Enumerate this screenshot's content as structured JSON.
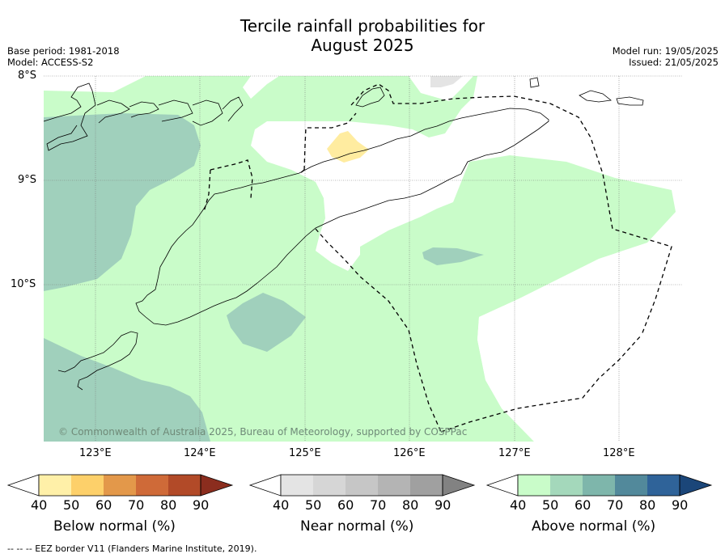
{
  "title_line1": "Tercile rainfall probabilities for",
  "title_line2": "August 2025",
  "meta_left": [
    "Base period: 1981-2018",
    "Model: ACCESS-S2"
  ],
  "meta_right": [
    "Model run: 19/05/2025",
    "Issued: 21/05/2025"
  ],
  "lat_labels": [
    "8°S",
    "9°S",
    "10°S"
  ],
  "lon_labels": [
    "123°E",
    "124°E",
    "125°E",
    "126°E",
    "127°E",
    "128°E"
  ],
  "copyright": "© Commonwealth of Australia 2025, Bureau of Meteorology, supported by COSPPac",
  "colorbars": [
    {
      "label": "Below normal (%)",
      "ticks": [
        "40",
        "50",
        "60",
        "70",
        "80",
        "90"
      ],
      "colors": [
        "#fff0a8",
        "#fdd06a",
        "#e3984a",
        "#cf6a38",
        "#b24a28",
        "#8b2d1e"
      ]
    },
    {
      "label": "Near normal (%)",
      "ticks": [
        "40",
        "50",
        "60",
        "70",
        "80",
        "90"
      ],
      "colors": [
        "#e4e4e4",
        "#d6d6d6",
        "#c6c6c6",
        "#b4b4b4",
        "#a0a0a0",
        "#828282"
      ]
    },
    {
      "label": "Above normal (%)",
      "ticks": [
        "40",
        "50",
        "60",
        "70",
        "80",
        "90"
      ],
      "colors": [
        "#c9fcc9",
        "#a4d8bb",
        "#7eb6ab",
        "#52899b",
        "#2f6399",
        "#1b4679"
      ]
    }
  ],
  "footnote": "-- -- -- EEZ border V11 (Flanders Marine Institute, 2019).",
  "map_colors": {
    "above_40": "#c9fcc9",
    "above_50": "#a0d0bc",
    "below_40": "#ffeca0",
    "near_40": "#e4e4e4",
    "land_outline": "#000000"
  }
}
